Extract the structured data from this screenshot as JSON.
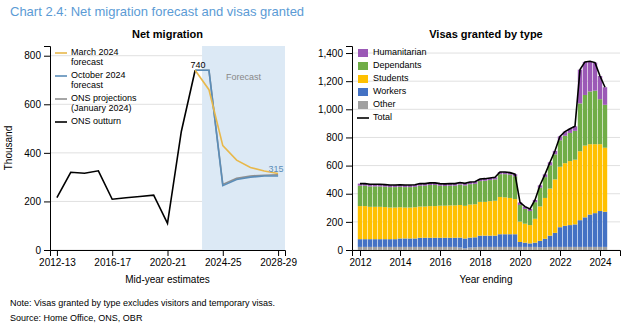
{
  "title": "Chart 2.4: Net migration forecast and visas granted",
  "color": "#5b9bd5",
  "notes": [
    "Note: Visas granted by type excludes visitors and temporary visas.",
    "Source: Home Office, ONS, OBR"
  ],
  "chart_data": [
    {
      "type": "line",
      "title": "Net migration",
      "xlabel": "Mid-year estimates",
      "ylabel": "Thousand",
      "xlim": [
        2012,
        2029
      ],
      "xticks": [
        {
          "value": 2012.5,
          "label": "2012-13"
        },
        {
          "value": 2016.5,
          "label": "2016-17"
        },
        {
          "value": 2020.5,
          "label": "2020-21"
        },
        {
          "value": 2024.5,
          "label": "2024-25"
        },
        {
          "value": 2028.5,
          "label": "2028-29"
        }
      ],
      "ylim": [
        0,
        840
      ],
      "yticks": [
        0,
        200,
        400,
        600,
        800
      ],
      "grid": "y",
      "legend": "upper left",
      "spans": [
        {
          "x": [
            2023.0,
            2029.0
          ],
          "color": "#dce9f5"
        }
      ],
      "series": [
        {
          "name": "March 2024\nforecast",
          "color": "#e8b84b",
          "x": [
            2022.5,
            2023.5,
            2024.5,
            2025.5,
            2026.5,
            2027.5,
            2028.5
          ],
          "values": [
            740,
            660,
            430,
            370,
            340,
            325,
            315
          ]
        },
        {
          "name": "October 2024\nforecast",
          "color": "#5b8db8",
          "x": [
            2022.5,
            2023.5,
            2024.5,
            2025.5,
            2026.5,
            2027.5,
            2028.5
          ],
          "values": [
            740,
            740,
            265,
            290,
            300,
            305,
            305
          ]
        },
        {
          "name": "ONS projections\n(January 2024)",
          "color": "#909090",
          "x": [
            2022.5,
            2023.5,
            2024.5,
            2025.5,
            2026.5,
            2027.5,
            2028.5
          ],
          "values": [
            740,
            740,
            270,
            295,
            305,
            308,
            310
          ]
        },
        {
          "name": "ONS outturn",
          "color": "#000000",
          "x": [
            2012.5,
            2013.5,
            2014.5,
            2015.5,
            2016.5,
            2017.5,
            2018.5,
            2019.5,
            2020.5,
            2021.5,
            2022.5
          ],
          "values": [
            216,
            320,
            316,
            326,
            209,
            215,
            220,
            226,
            110,
            488,
            740
          ]
        }
      ],
      "annotations": [
        {
          "text": "740",
          "x": 2022.7,
          "y": 748,
          "color": "#000000"
        },
        {
          "text": "315",
          "x": 2028.35,
          "y": 323,
          "color": "#5b8db8"
        },
        {
          "text": "Forecast",
          "x": 2026.0,
          "y": 700,
          "color": "#888888"
        }
      ]
    },
    {
      "type": "bar",
      "title": "Visas granted by type",
      "xlabel": "Year ending",
      "stacked": true,
      "xlim": [
        2011.6,
        2025.0
      ],
      "xticks": [
        2012,
        2014,
        2016,
        2018,
        2020,
        2022,
        2024
      ],
      "ylim": [
        0,
        1450
      ],
      "yticks": [
        0,
        200,
        400,
        600,
        800,
        {
          "value": 1000,
          "label": "1,000"
        },
        {
          "value": 1200,
          "label": "1,200"
        },
        {
          "value": 1400,
          "label": "1,400"
        }
      ],
      "grid": "y",
      "legend": "upper left",
      "x": [
        2012.0,
        2012.25,
        2012.5,
        2012.75,
        2013.0,
        2013.25,
        2013.5,
        2013.75,
        2014.0,
        2014.25,
        2014.5,
        2014.75,
        2015.0,
        2015.25,
        2015.5,
        2015.75,
        2016.0,
        2016.25,
        2016.5,
        2016.75,
        2017.0,
        2017.25,
        2017.5,
        2017.75,
        2018.0,
        2018.25,
        2018.5,
        2018.75,
        2019.0,
        2019.25,
        2019.5,
        2019.75,
        2020.0,
        2020.25,
        2020.5,
        2020.75,
        2021.0,
        2021.25,
        2021.5,
        2021.75,
        2022.0,
        2022.25,
        2022.5,
        2022.75,
        2023.0,
        2023.25,
        2023.5,
        2023.75,
        2024.0,
        2024.25
      ],
      "series": [
        {
          "name": "Other",
          "color": "#a0a0a0",
          "values": [
            22,
            22,
            22,
            22,
            22,
            22,
            22,
            22,
            22,
            22,
            22,
            22,
            22,
            22,
            22,
            22,
            22,
            22,
            22,
            22,
            18,
            12,
            18,
            20,
            22,
            22,
            22,
            22,
            22,
            22,
            22,
            22,
            22,
            22,
            22,
            22,
            20,
            20,
            22,
            22,
            22,
            22,
            22,
            22,
            22,
            22,
            22,
            22,
            22,
            22
          ]
        },
        {
          "name": "Workers",
          "color": "#4472c4",
          "values": [
            55,
            55,
            55,
            55,
            55,
            55,
            55,
            55,
            60,
            60,
            60,
            60,
            65,
            65,
            65,
            65,
            65,
            65,
            65,
            65,
            70,
            70,
            70,
            70,
            80,
            80,
            80,
            80,
            90,
            90,
            90,
            90,
            35,
            30,
            25,
            30,
            45,
            60,
            80,
            100,
            140,
            150,
            155,
            160,
            190,
            210,
            230,
            240,
            255,
            250
          ]
        },
        {
          "name": "Students",
          "color": "#ffc000",
          "values": [
            235,
            235,
            230,
            230,
            230,
            228,
            225,
            225,
            222,
            220,
            220,
            222,
            222,
            222,
            225,
            225,
            228,
            228,
            230,
            230,
            232,
            232,
            235,
            235,
            240,
            240,
            245,
            248,
            265,
            262,
            258,
            250,
            145,
            135,
            130,
            170,
            245,
            290,
            335,
            380,
            430,
            445,
            455,
            460,
            490,
            510,
            500,
            490,
            475,
            455
          ]
        },
        {
          "name": "Dependants",
          "color": "#70ad47",
          "values": [
            145,
            145,
            145,
            145,
            145,
            145,
            145,
            145,
            145,
            145,
            145,
            145,
            148,
            148,
            150,
            150,
            142,
            140,
            140,
            140,
            145,
            145,
            145,
            145,
            148,
            150,
            150,
            152,
            162,
            165,
            165,
            162,
            118,
            105,
            100,
            118,
            132,
            148,
            165,
            178,
            188,
            195,
            200,
            205,
            340,
            360,
            375,
            380,
            320,
            305
          ]
        },
        {
          "name": "Humanitarian",
          "color": "#9b59b6",
          "values": [
            15,
            15,
            15,
            15,
            15,
            15,
            15,
            15,
            15,
            15,
            15,
            15,
            15,
            15,
            15,
            15,
            15,
            15,
            15,
            15,
            15,
            15,
            15,
            15,
            15,
            15,
            15,
            15,
            15,
            15,
            15,
            15,
            18,
            16,
            15,
            16,
            18,
            20,
            22,
            25,
            28,
            30,
            30,
            32,
            240,
            235,
            215,
            200,
            165,
            125
          ]
        },
        {
          "name": "Total",
          "type": "line",
          "color": "#000000",
          "values": [
            472,
            472,
            467,
            467,
            467,
            465,
            462,
            462,
            464,
            462,
            462,
            464,
            472,
            472,
            477,
            477,
            472,
            470,
            472,
            472,
            480,
            474,
            483,
            485,
            505,
            507,
            512,
            517,
            554,
            554,
            550,
            539,
            338,
            308,
            292,
            356,
            460,
            538,
            624,
            705,
            808,
            842,
            862,
            879,
            1282,
            1337,
            1342,
            1332,
            1237,
            1157
          ]
        }
      ]
    }
  ]
}
